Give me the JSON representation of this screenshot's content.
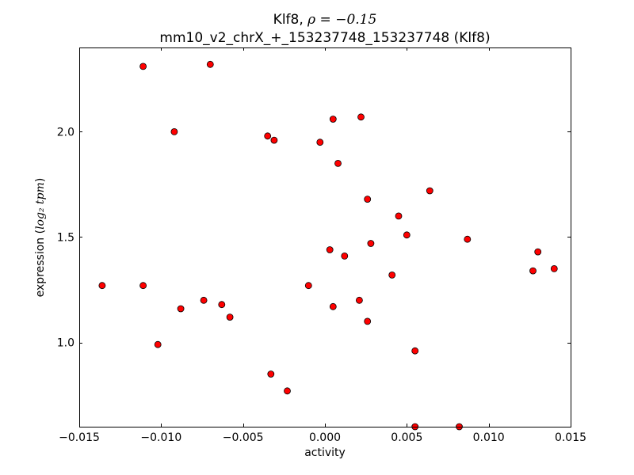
{
  "chart_data": {
    "type": "scatter",
    "title_line1_prefix": "Klf8, ",
    "title_line1_math": "ρ = −0.15",
    "title_line2": "mm10_v2_chrX_+_153237748_153237748 (Klf8)",
    "xlabel": "activity",
    "ylabel_prefix": "expression (",
    "ylabel_math": "log₂ tpm",
    "ylabel_suffix": ")",
    "xlim": [
      -0.015,
      0.015
    ],
    "ylim": [
      0.6,
      2.4
    ],
    "xticks": [
      -0.015,
      -0.01,
      -0.005,
      0.0,
      0.005,
      0.01,
      0.015
    ],
    "xtick_labels": [
      "−0.015",
      "−0.010",
      "−0.005",
      "0.000",
      "0.005",
      "0.010",
      "0.015"
    ],
    "yticks": [
      1.0,
      1.5,
      2.0
    ],
    "ytick_labels": [
      "1.0",
      "1.5",
      "2.0"
    ],
    "marker_color": "#ff0000",
    "marker_edge": "#000000",
    "grid": false,
    "points": [
      {
        "x": -0.0136,
        "y": 1.27
      },
      {
        "x": -0.0111,
        "y": 2.31
      },
      {
        "x": -0.0111,
        "y": 1.27
      },
      {
        "x": -0.0102,
        "y": 0.99
      },
      {
        "x": -0.0092,
        "y": 2.0
      },
      {
        "x": -0.0088,
        "y": 1.16
      },
      {
        "x": -0.0074,
        "y": 1.2
      },
      {
        "x": -0.007,
        "y": 2.32
      },
      {
        "x": -0.0063,
        "y": 1.18
      },
      {
        "x": -0.0058,
        "y": 1.12
      },
      {
        "x": -0.0035,
        "y": 1.98
      },
      {
        "x": -0.0033,
        "y": 0.85
      },
      {
        "x": -0.0031,
        "y": 1.96
      },
      {
        "x": -0.0023,
        "y": 0.77
      },
      {
        "x": -0.001,
        "y": 1.27
      },
      {
        "x": -0.0003,
        "y": 1.95
      },
      {
        "x": 0.0003,
        "y": 1.44
      },
      {
        "x": 0.0005,
        "y": 2.06
      },
      {
        "x": 0.0005,
        "y": 1.17
      },
      {
        "x": 0.0008,
        "y": 1.85
      },
      {
        "x": 0.0012,
        "y": 1.41
      },
      {
        "x": 0.0021,
        "y": 1.2
      },
      {
        "x": 0.0022,
        "y": 2.07
      },
      {
        "x": 0.0026,
        "y": 1.68
      },
      {
        "x": 0.0026,
        "y": 1.1
      },
      {
        "x": 0.0028,
        "y": 1.47
      },
      {
        "x": 0.0041,
        "y": 1.32
      },
      {
        "x": 0.0045,
        "y": 1.6
      },
      {
        "x": 0.005,
        "y": 1.51
      },
      {
        "x": 0.0055,
        "y": 0.96
      },
      {
        "x": 0.0055,
        "y": 0.6
      },
      {
        "x": 0.0064,
        "y": 1.72
      },
      {
        "x": 0.0082,
        "y": 0.6
      },
      {
        "x": 0.0087,
        "y": 1.49
      },
      {
        "x": 0.0127,
        "y": 1.34
      },
      {
        "x": 0.013,
        "y": 1.43
      },
      {
        "x": 0.014,
        "y": 1.35
      }
    ]
  }
}
